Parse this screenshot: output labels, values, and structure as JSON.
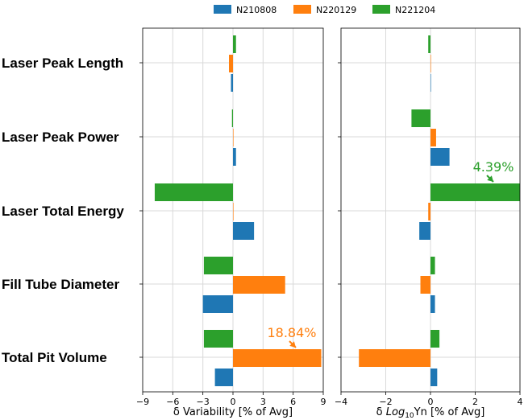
{
  "chart_data": {
    "type": "bar",
    "orientation": "horizontal",
    "legend": {
      "placement": "top-center",
      "entries": [
        "N210808",
        "N220129",
        "N221204"
      ]
    },
    "categories": [
      "Laser Peak Length",
      "Laser Peak Power",
      "Laser Total Energy",
      "Fill Tube Diameter",
      "Total Pit Volume"
    ],
    "series_colors": {
      "N210808": "#1f77b4",
      "N220129": "#ff7f0e",
      "N221204": "#2ca02c"
    },
    "grid": true,
    "panels": [
      {
        "xlabel": "δ Variability [% of Avg]",
        "xlim": [
          -9,
          9
        ],
        "xticks": [
          -9,
          -6,
          -3,
          0,
          3,
          6,
          9
        ],
        "xtick_labels": [
          "−9",
          "−6",
          "−3",
          "0",
          "3",
          "6",
          "9"
        ],
        "series": [
          {
            "name": "N210808",
            "values": [
              -0.2,
              0.3,
              2.1,
              -3.0,
              -1.8
            ]
          },
          {
            "name": "N220129",
            "values": [
              -0.4,
              0.0,
              0.0,
              5.2,
              8.8
            ]
          },
          {
            "name": "N221204",
            "values": [
              0.3,
              -0.1,
              -7.8,
              -2.9,
              -2.9
            ]
          }
        ],
        "annotation": {
          "text": "18.84%",
          "series": "N220129",
          "category": "Total Pit Volume",
          "color": "#ff7f0e"
        }
      },
      {
        "xlabel_prefix": "δ ",
        "xlabel_log": "Log",
        "xlabel_sub": "10",
        "xlabel_rest": "Yn [% of Avg]",
        "xlim": [
          -4,
          4
        ],
        "xticks": [
          -4,
          -2,
          0,
          2,
          4
        ],
        "xtick_labels": [
          "−4",
          "−2",
          "0",
          "2",
          "4"
        ],
        "series": [
          {
            "name": "N210808",
            "values": [
              0.02,
              0.85,
              -0.5,
              0.2,
              0.3
            ]
          },
          {
            "name": "N220129",
            "values": [
              0.0,
              0.25,
              -0.1,
              -0.45,
              -3.2
            ]
          },
          {
            "name": "N221204",
            "values": [
              -0.1,
              -0.85,
              4.0,
              0.2,
              0.4
            ]
          }
        ],
        "annotation": {
          "text": "4.39%",
          "series": "N221204",
          "category": "Laser Total Energy",
          "color": "#2ca02c"
        }
      }
    ]
  }
}
